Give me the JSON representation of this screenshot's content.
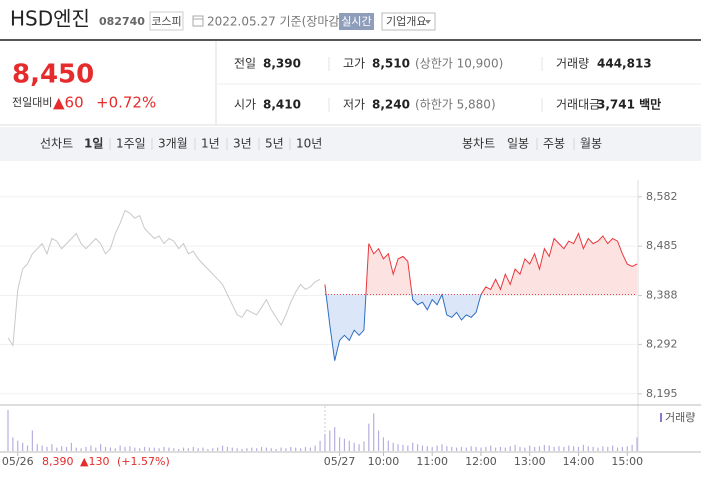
{
  "header": {
    "name": "HSD엔진",
    "code": "082740",
    "market": "코스피",
    "date": "2022.05.27 기준(장마감)",
    "realtime": "실시간",
    "overview": "기업개요"
  },
  "quote": {
    "price": "8,450",
    "change_label": "전일대비",
    "change": "▲60",
    "change_pct": "+0.72%"
  },
  "stats": [
    [
      {
        "label": "전일",
        "value": "8,390"
      },
      {
        "label": "고가",
        "value": "8,510",
        "note": "(상한가 10,900)"
      },
      {
        "label": "거래량",
        "value": "444,813"
      }
    ],
    [
      {
        "label": "시가",
        "value": "8,410"
      },
      {
        "label": "저가",
        "value": "8,240",
        "note": "(하한가 5,880)"
      },
      {
        "label": "거래대금",
        "value": "3,741 백만"
      }
    ]
  ],
  "tabs": {
    "line_label": "선차트",
    "line_periods": [
      "1일",
      "1주일",
      "3개월",
      "1년",
      "3년",
      "5년",
      "10년"
    ],
    "candle_label": "봉차트",
    "candle_periods": [
      "일봉",
      "주봉",
      "월봉"
    ]
  },
  "chart_data": {
    "type": "line",
    "categories": [
      null,
      null,
      "05/26",
      null,
      null,
      null,
      null,
      null,
      null,
      null,
      null,
      null,
      null,
      null,
      null,
      null,
      null,
      null,
      null,
      null,
      null,
      null,
      null,
      null,
      null,
      null,
      null,
      null,
      null,
      null,
      null,
      null,
      null,
      null,
      null,
      null,
      null,
      null,
      null,
      null,
      null,
      null,
      null,
      null,
      null,
      null,
      null,
      null,
      null,
      null,
      null,
      null,
      null,
      null,
      null,
      null,
      null,
      null,
      null,
      null,
      null,
      null,
      null,
      null,
      null,
      null,
      null,
      null,
      "05/27",
      null,
      null,
      null,
      null,
      null,
      null,
      null,
      null,
      "10:00",
      null,
      null,
      null,
      null,
      null,
      null,
      null,
      null,
      null,
      "11:00",
      null,
      null,
      null,
      null,
      null,
      null,
      null,
      null,
      null,
      "12:00",
      null,
      null,
      null,
      null,
      null,
      null,
      null,
      null,
      null,
      "13:00",
      null,
      null,
      null,
      null,
      null,
      null,
      null,
      null,
      null,
      "14:00",
      null,
      null,
      null,
      null,
      null,
      null,
      null,
      null,
      null,
      "15:00",
      null,
      null
    ],
    "series": [
      {
        "color": "#c9c9c9",
        "values": [
          8305,
          8290,
          8400,
          8440,
          8450,
          8470,
          8480,
          8490,
          8470,
          8500,
          8495,
          8480,
          8490,
          8500,
          8510,
          8490,
          8480,
          8490,
          8500,
          8490,
          8470,
          8480,
          8510,
          8530,
          8555,
          8550,
          8540,
          8545,
          8520,
          8510,
          8500,
          8505,
          8490,
          8500,
          8495,
          8480,
          8490,
          8470,
          8475,
          8460,
          8450,
          8440,
          8430,
          8420,
          8410,
          8390,
          8370,
          8350,
          8345,
          8360,
          8355,
          8350,
          8365,
          8380,
          8360,
          8345,
          8330,
          8350,
          8375,
          8395,
          8410,
          8400,
          8405,
          8415,
          8420,
          null,
          null,
          null,
          null,
          null,
          null,
          null,
          null,
          null,
          null,
          null,
          null,
          null,
          null,
          null,
          null,
          null,
          null,
          null,
          null,
          null,
          null,
          null,
          null,
          null,
          null,
          null,
          null,
          null,
          null,
          null,
          null,
          null,
          null,
          null,
          null,
          null,
          null,
          null,
          null,
          null,
          null,
          null,
          null,
          null,
          null,
          null,
          null,
          null,
          null,
          null,
          null,
          null,
          null,
          null,
          null,
          null,
          null,
          null,
          null,
          null,
          null,
          null,
          null,
          null
        ]
      },
      {
        "color": "#e8383d",
        "down_color": "#2f6fc4",
        "fill": "#fde2e2",
        "down_fill": "#dbe7f8",
        "values": [
          null,
          null,
          null,
          null,
          null,
          null,
          null,
          null,
          null,
          null,
          null,
          null,
          null,
          null,
          null,
          null,
          null,
          null,
          null,
          null,
          null,
          null,
          null,
          null,
          null,
          null,
          null,
          null,
          null,
          null,
          null,
          null,
          null,
          null,
          null,
          null,
          null,
          null,
          null,
          null,
          null,
          null,
          null,
          null,
          null,
          null,
          null,
          null,
          null,
          null,
          null,
          null,
          null,
          null,
          null,
          null,
          null,
          null,
          null,
          null,
          null,
          null,
          null,
          null,
          null,
          8410,
          8330,
          8260,
          8300,
          8310,
          8300,
          8320,
          8310,
          8320,
          8490,
          8470,
          8480,
          8460,
          8470,
          8430,
          8460,
          8465,
          8455,
          8380,
          8370,
          8375,
          8360,
          8380,
          8370,
          8390,
          8350,
          8345,
          8355,
          8340,
          8350,
          8345,
          8355,
          8390,
          8405,
          8400,
          8420,
          8400,
          8430,
          8410,
          8440,
          8430,
          8460,
          8450,
          8470,
          8440,
          8480,
          8465,
          8500,
          8490,
          8480,
          8495,
          8490,
          8510,
          8480,
          8500,
          8490,
          8495,
          8505,
          8490,
          8500,
          8495,
          8470,
          8450,
          8445,
          8450
        ]
      }
    ],
    "baseline": 8390,
    "ylim": [
      8173,
      8615
    ],
    "yticks": [
      {
        "value": 8195,
        "label": "8,195"
      },
      {
        "value": 8292,
        "label": "8,292"
      },
      {
        "value": 8388,
        "label": "8,388"
      },
      {
        "value": 8485,
        "label": "8,485"
      },
      {
        "value": 8582,
        "label": "8,582"
      }
    ],
    "grid": true,
    "volume": {
      "label": "거래량",
      "color": "#b9aee0",
      "values": [
        60,
        20,
        15,
        12,
        8,
        30,
        10,
        8,
        6,
        10,
        5,
        7,
        6,
        12,
        5,
        4,
        6,
        8,
        5,
        10,
        6,
        5,
        4,
        8,
        6,
        7,
        5,
        4,
        6,
        5,
        5,
        4,
        6,
        5,
        4,
        3,
        5,
        4,
        6,
        4,
        5,
        3,
        4,
        5,
        8,
        6,
        5,
        4,
        3,
        4,
        5,
        4,
        6,
        5,
        4,
        3,
        5,
        4,
        6,
        5,
        4,
        6,
        5,
        8,
        15,
        25,
        30,
        35,
        20,
        18,
        15,
        12,
        10,
        14,
        40,
        55,
        30,
        20,
        15,
        12,
        10,
        9,
        8,
        12,
        10,
        8,
        7,
        6,
        8,
        10,
        7,
        6,
        5,
        6,
        5,
        7,
        6,
        5,
        6,
        8,
        5,
        6,
        5,
        7,
        9,
        6,
        5,
        8,
        6,
        7,
        9,
        8,
        6,
        7,
        6,
        8,
        7,
        6,
        9,
        7,
        6,
        5,
        7,
        6,
        8,
        5,
        6,
        7,
        9,
        20
      ]
    },
    "footer": {
      "price": "8,390",
      "change": "▲130",
      "change_pct": "(+1.57%)"
    }
  }
}
